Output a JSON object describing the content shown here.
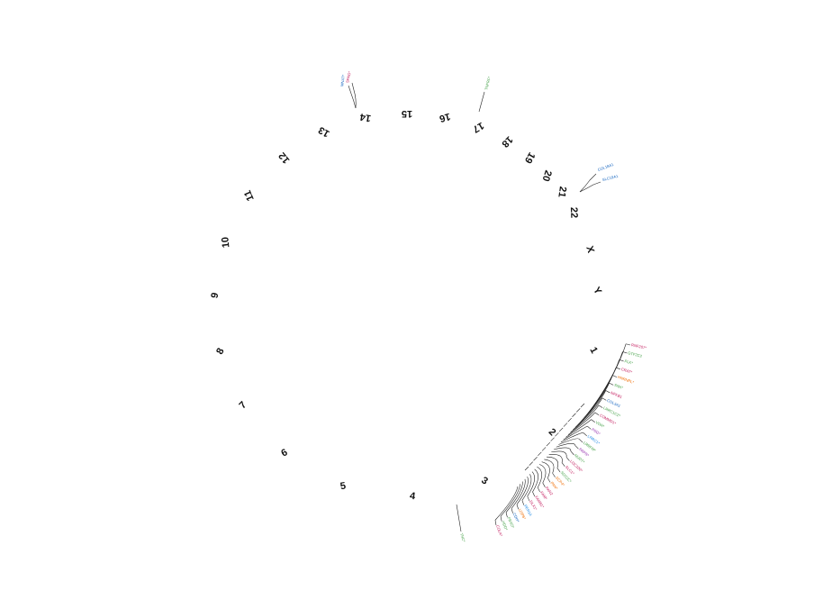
{
  "chart_data": {
    "type": "circular-genome-ideogram",
    "chromosomes": [
      "1",
      "2",
      "3",
      "4",
      "5",
      "6",
      "7",
      "8",
      "9",
      "10",
      "11",
      "12",
      "13",
      "14",
      "15",
      "16",
      "17",
      "18",
      "19",
      "20",
      "21",
      "22",
      "X",
      "Y"
    ],
    "gene_labels": [
      {
        "chromosome": "1",
        "genes": [
          {
            "text": "RNF207*",
            "color": "#c2185b"
          },
          {
            "text": "GTF2C2",
            "color": "#43a047"
          },
          {
            "text": "PLK*",
            "color": "#43a047"
          },
          {
            "text": "CRAT*",
            "color": "#c2185b"
          },
          {
            "text": "HNRNPL*",
            "color": "#ef6c00"
          },
          {
            "text": "SNX*",
            "color": "#43a047"
          },
          {
            "text": "NFKB1",
            "color": "#c2185b"
          },
          {
            "text": "COL3A1",
            "color": "#1565c0"
          },
          {
            "text": "LRRC1C2*",
            "color": "#43a047"
          },
          {
            "text": "COMMD1*",
            "color": "#c2185b"
          },
          {
            "text": "VDR*",
            "color": "#43a047"
          },
          {
            "text": "PSG*",
            "color": "#8e24aa"
          },
          {
            "text": "LRRC1*",
            "color": "#1e88e5"
          }
        ]
      },
      {
        "chromosome": "2",
        "genes": [
          {
            "text": "LRRFM*",
            "color": "#43a047"
          },
          {
            "text": "PAPN*",
            "color": "#8e24aa"
          },
          {
            "text": "NUDT*",
            "color": "#43a047"
          },
          {
            "text": "LOC100*",
            "color": "#c2185b"
          },
          {
            "text": "SLC1*",
            "color": "#c2185b"
          },
          {
            "text": "SDS2C*",
            "color": "#43a047"
          },
          {
            "text": "SCP4*",
            "color": "#ef6c00"
          },
          {
            "text": "PAN*",
            "color": "#ef6c00"
          },
          {
            "text": "PAN2",
            "color": "#c2185b"
          },
          {
            "text": "FAM*",
            "color": "#c2185b"
          }
        ]
      },
      {
        "chromosome": "3",
        "genes": [
          {
            "text": "FAM81*",
            "color": "#c2185b"
          },
          {
            "text": "DLX1*",
            "color": "#c2185b"
          },
          {
            "text": "PER1A",
            "color": "#1e88e5"
          },
          {
            "text": "USP6*",
            "color": "#ef6c00"
          },
          {
            "text": "CDH*",
            "color": "#1565c0"
          },
          {
            "text": "FBXO*",
            "color": "#43a047"
          },
          {
            "text": "HDD*",
            "color": "#43a047"
          },
          {
            "text": "COLA*",
            "color": "#c2185b"
          }
        ]
      },
      {
        "chromosome": "3",
        "genes": [
          {
            "text": "TNC*",
            "color": "#43a047"
          }
        ]
      },
      {
        "chromosome": "14",
        "genes": [
          {
            "text": "SPAG*",
            "color": "#c2185b"
          },
          {
            "text": "MNAT*",
            "color": "#1565c0"
          }
        ]
      },
      {
        "chromosome": "17",
        "genes": [
          {
            "text": "TNFRF*",
            "color": "#43a047"
          }
        ]
      },
      {
        "chromosome": "22",
        "genes": [
          {
            "text": "COL18A1",
            "color": "#1565c0"
          },
          {
            "text": "SLC19A1",
            "color": "#1565c0"
          }
        ]
      }
    ]
  }
}
